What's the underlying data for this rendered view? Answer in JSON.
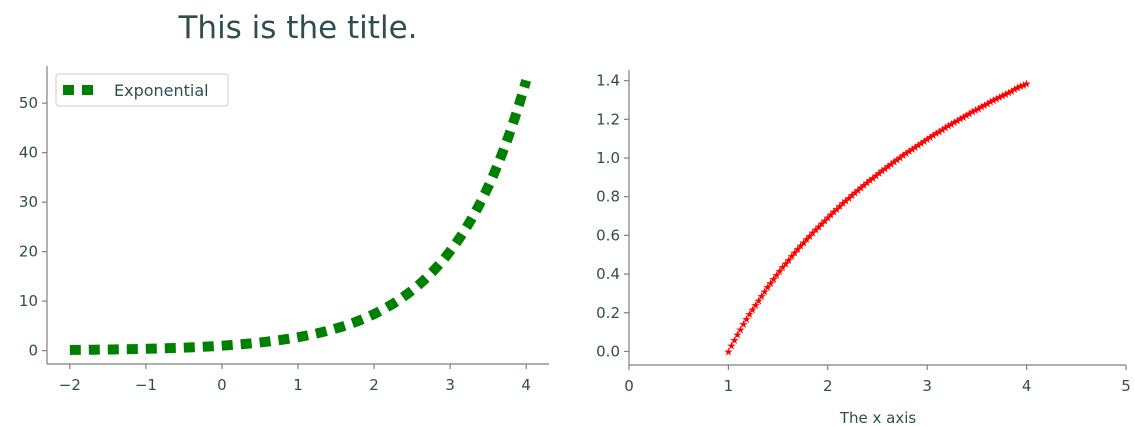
{
  "title": "This is the title.",
  "colors": {
    "text": "#2f4f4f",
    "axis": "#7f7f7f",
    "exp_line": "#008000",
    "log_marker": "#ff0000"
  },
  "chart_data": [
    {
      "type": "line",
      "title": "",
      "xlabel": "",
      "ylabel": "",
      "xlim": [
        -2.3,
        4.3
      ],
      "ylim": [
        -2.7,
        57.5
      ],
      "xticks": [
        -2,
        -1,
        0,
        1,
        2,
        3,
        4
      ],
      "xtick_labels": [
        "−2",
        "−1",
        "0",
        "1",
        "2",
        "3",
        "4"
      ],
      "yticks": [
        0,
        10,
        20,
        30,
        40,
        50
      ],
      "ytick_labels": [
        "0",
        "10",
        "20",
        "30",
        "40",
        "50"
      ],
      "grid": false,
      "legend": {
        "position": "upper-left",
        "entries": [
          "Exponential"
        ]
      },
      "series": [
        {
          "name": "Exponential",
          "style": "dashed",
          "color": "#008000",
          "function": "exp(x)",
          "x_range": [
            -2,
            4
          ]
        }
      ]
    },
    {
      "type": "scatter",
      "title": "",
      "xlabel": "The x axis",
      "ylabel": "",
      "xlim": [
        0,
        5
      ],
      "ylim": [
        -0.07,
        1.455
      ],
      "xticks": [
        0,
        1,
        2,
        3,
        4,
        5
      ],
      "xtick_labels": [
        "0",
        "1",
        "2",
        "3",
        "4",
        "5"
      ],
      "yticks": [
        0.0,
        0.2,
        0.4,
        0.6,
        0.8,
        1.0,
        1.2,
        1.4
      ],
      "ytick_labels": [
        "0.0",
        "0.2",
        "0.4",
        "0.6",
        "0.8",
        "1.0",
        "1.2",
        "1.4"
      ],
      "grid": false,
      "series": [
        {
          "marker": "star",
          "color": "#ff0000",
          "function": "ln(x)",
          "x_range": [
            1,
            4
          ],
          "count": 100
        }
      ]
    }
  ]
}
